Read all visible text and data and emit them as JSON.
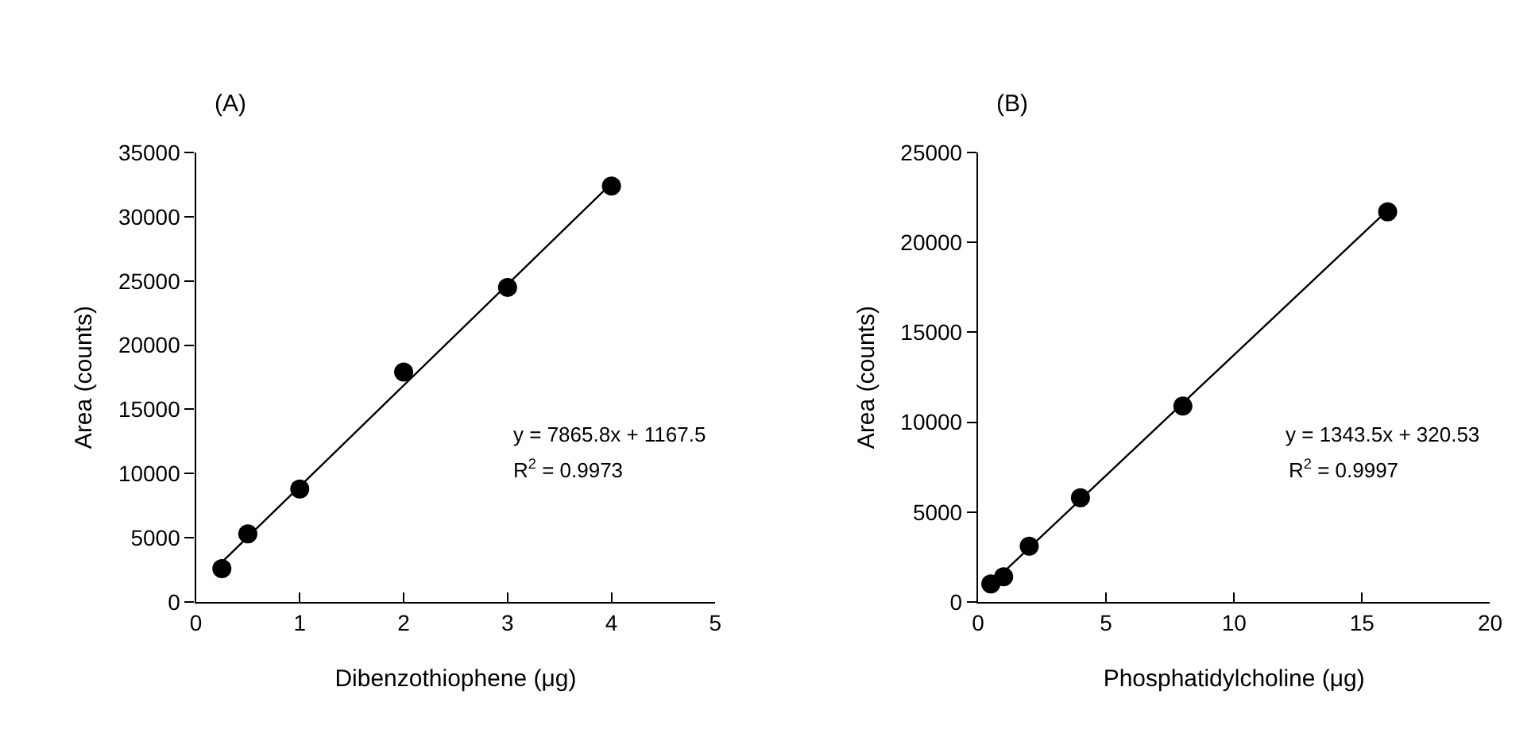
{
  "chart_data": [
    {
      "type": "scatter",
      "title": "(A)",
      "xlabel": "Dibenzothiophene (μg)",
      "ylabel": "Area (counts)",
      "series": [
        {
          "color": "#000000",
          "marker": "circle",
          "x": [
            0.25,
            0.5,
            1,
            2,
            3,
            4
          ],
          "values": [
            2600,
            5300,
            8800,
            17900,
            24500,
            32400
          ]
        },
        {
          "type": "line",
          "color": "#000000",
          "marker": "none",
          "line_style": "solid",
          "x": [
            0.25,
            4
          ],
          "values": [
            3100,
            32600
          ]
        }
      ],
      "xlim": [
        0,
        5
      ],
      "xticks": [
        0,
        1,
        2,
        3,
        4,
        5
      ],
      "ylim": [
        0,
        35000
      ],
      "yticks": [
        0,
        5000,
        10000,
        15000,
        20000,
        25000,
        30000,
        35000
      ],
      "annotations": [
        "y = 7865.8x + 1167.5",
        "R$^{2}$ = 0.9973"
      ]
    },
    {
      "type": "scatter",
      "title": "(B)",
      "xlabel": "Phosphatidylcholine (μg)",
      "ylabel": "Area (counts)",
      "series": [
        {
          "color": "#000000",
          "marker": "circle",
          "x": [
            0.5,
            1,
            2,
            4,
            8,
            16
          ],
          "values": [
            1000,
            1400,
            3100,
            5800,
            10900,
            21700
          ]
        },
        {
          "type": "line",
          "color": "#000000",
          "marker": "none",
          "line_style": "solid",
          "x": [
            0.5,
            16
          ],
          "values": [
            1000,
            21800
          ]
        }
      ],
      "xlim": [
        0,
        20
      ],
      "xticks": [
        0,
        5,
        10,
        15,
        20
      ],
      "ylim": [
        0,
        25000
      ],
      "yticks": [
        0,
        5000,
        10000,
        15000,
        20000,
        25000
      ],
      "annotations": [
        "y = 1343.5x + 320.53",
        "R$^{2}$ = 0.9997"
      ]
    }
  ]
}
